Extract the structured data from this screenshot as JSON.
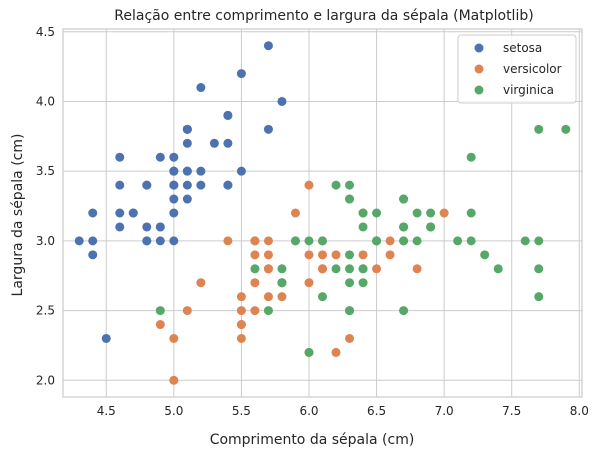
{
  "chart_data": {
    "type": "scatter",
    "title": "Relação entre comprimento e largura da sépala (Matplotlib)",
    "xlabel": "Comprimento da sépala (cm)",
    "ylabel": "Largura da sépala (cm)",
    "xlim": [
      4.18,
      8.02
    ],
    "ylim": [
      1.88,
      4.52
    ],
    "xticks": [
      4.5,
      5.0,
      5.5,
      6.0,
      6.5,
      7.0,
      7.5,
      8.0
    ],
    "xtick_labels": [
      "4.5",
      "5.0",
      "5.5",
      "6.0",
      "6.5",
      "7.0",
      "7.5",
      "8.0"
    ],
    "yticks": [
      2.0,
      2.5,
      3.0,
      3.5,
      4.0,
      4.5
    ],
    "ytick_labels": [
      "2.0",
      "2.5",
      "3.0",
      "3.5",
      "4.0",
      "4.5"
    ],
    "grid": true,
    "legend_position": "top-right",
    "series": [
      {
        "name": "setosa",
        "color": "#4c72b0",
        "points": [
          [
            5.1,
            3.5
          ],
          [
            4.9,
            3.0
          ],
          [
            4.7,
            3.2
          ],
          [
            4.6,
            3.1
          ],
          [
            5.0,
            3.6
          ],
          [
            5.4,
            3.9
          ],
          [
            4.6,
            3.4
          ],
          [
            5.0,
            3.4
          ],
          [
            4.4,
            2.9
          ],
          [
            4.9,
            3.1
          ],
          [
            5.4,
            3.7
          ],
          [
            4.8,
            3.4
          ],
          [
            4.8,
            3.0
          ],
          [
            4.3,
            3.0
          ],
          [
            5.8,
            4.0
          ],
          [
            5.7,
            4.4
          ],
          [
            5.4,
            3.9
          ],
          [
            5.1,
            3.5
          ],
          [
            5.7,
            3.8
          ],
          [
            5.1,
            3.8
          ],
          [
            5.4,
            3.4
          ],
          [
            5.1,
            3.7
          ],
          [
            4.6,
            3.6
          ],
          [
            5.1,
            3.3
          ],
          [
            4.8,
            3.4
          ],
          [
            5.0,
            3.0
          ],
          [
            5.0,
            3.4
          ],
          [
            5.2,
            3.5
          ],
          [
            5.2,
            3.4
          ],
          [
            4.7,
            3.2
          ],
          [
            4.8,
            3.1
          ],
          [
            5.4,
            3.4
          ],
          [
            5.2,
            4.1
          ],
          [
            5.5,
            4.2
          ],
          [
            4.9,
            3.1
          ],
          [
            5.0,
            3.2
          ],
          [
            5.5,
            3.5
          ],
          [
            4.9,
            3.6
          ],
          [
            4.4,
            3.0
          ],
          [
            5.1,
            3.4
          ],
          [
            5.0,
            3.5
          ],
          [
            4.5,
            2.3
          ],
          [
            4.4,
            3.2
          ],
          [
            5.0,
            3.5
          ],
          [
            5.1,
            3.8
          ],
          [
            4.8,
            3.0
          ],
          [
            5.1,
            3.8
          ],
          [
            4.6,
            3.2
          ],
          [
            5.3,
            3.7
          ],
          [
            5.0,
            3.3
          ]
        ]
      },
      {
        "name": "versicolor",
        "color": "#dd8452",
        "points": [
          [
            7.0,
            3.2
          ],
          [
            6.4,
            3.2
          ],
          [
            6.9,
            3.1
          ],
          [
            5.5,
            2.3
          ],
          [
            6.5,
            2.8
          ],
          [
            5.7,
            2.8
          ],
          [
            6.3,
            3.3
          ],
          [
            4.9,
            2.4
          ],
          [
            6.6,
            2.9
          ],
          [
            5.2,
            2.7
          ],
          [
            5.0,
            2.0
          ],
          [
            5.9,
            3.0
          ],
          [
            6.0,
            2.2
          ],
          [
            6.1,
            2.9
          ],
          [
            5.6,
            2.9
          ],
          [
            6.7,
            3.1
          ],
          [
            5.6,
            3.0
          ],
          [
            5.8,
            2.7
          ],
          [
            6.2,
            2.2
          ],
          [
            5.6,
            2.5
          ],
          [
            5.9,
            3.2
          ],
          [
            6.1,
            2.8
          ],
          [
            6.3,
            2.5
          ],
          [
            6.1,
            2.8
          ],
          [
            6.4,
            2.9
          ],
          [
            6.6,
            3.0
          ],
          [
            6.8,
            2.8
          ],
          [
            6.7,
            3.0
          ],
          [
            6.0,
            2.9
          ],
          [
            5.7,
            2.6
          ],
          [
            5.5,
            2.4
          ],
          [
            5.5,
            2.4
          ],
          [
            5.8,
            2.7
          ],
          [
            6.0,
            2.7
          ],
          [
            5.4,
            3.0
          ],
          [
            6.0,
            3.4
          ],
          [
            6.7,
            3.1
          ],
          [
            6.3,
            2.3
          ],
          [
            5.6,
            3.0
          ],
          [
            5.5,
            2.5
          ],
          [
            5.5,
            2.6
          ],
          [
            6.1,
            3.0
          ],
          [
            5.8,
            2.6
          ],
          [
            5.0,
            2.3
          ],
          [
            5.6,
            2.7
          ],
          [
            5.7,
            3.0
          ],
          [
            5.7,
            2.9
          ],
          [
            6.2,
            2.9
          ],
          [
            5.1,
            2.5
          ],
          [
            5.7,
            2.8
          ]
        ]
      },
      {
        "name": "virginica",
        "color": "#55a868",
        "points": [
          [
            6.3,
            3.3
          ],
          [
            5.8,
            2.7
          ],
          [
            7.1,
            3.0
          ],
          [
            6.3,
            2.9
          ],
          [
            6.5,
            3.0
          ],
          [
            7.6,
            3.0
          ],
          [
            4.9,
            2.5
          ],
          [
            7.3,
            2.9
          ],
          [
            6.7,
            2.5
          ],
          [
            7.2,
            3.6
          ],
          [
            6.5,
            3.2
          ],
          [
            6.4,
            2.7
          ],
          [
            6.8,
            3.0
          ],
          [
            5.7,
            2.5
          ],
          [
            5.8,
            2.8
          ],
          [
            6.4,
            3.2
          ],
          [
            6.5,
            3.0
          ],
          [
            7.7,
            3.8
          ],
          [
            7.7,
            2.6
          ],
          [
            6.0,
            2.2
          ],
          [
            6.9,
            3.2
          ],
          [
            5.6,
            2.8
          ],
          [
            7.7,
            2.8
          ],
          [
            6.3,
            2.7
          ],
          [
            6.7,
            3.3
          ],
          [
            7.2,
            3.2
          ],
          [
            6.2,
            2.8
          ],
          [
            6.1,
            3.0
          ],
          [
            6.4,
            2.8
          ],
          [
            7.2,
            3.0
          ],
          [
            7.4,
            2.8
          ],
          [
            7.9,
            3.8
          ],
          [
            6.4,
            2.8
          ],
          [
            6.3,
            2.8
          ],
          [
            6.1,
            2.6
          ],
          [
            7.7,
            3.0
          ],
          [
            6.3,
            3.4
          ],
          [
            6.4,
            3.1
          ],
          [
            6.0,
            3.0
          ],
          [
            6.9,
            3.1
          ],
          [
            6.7,
            3.1
          ],
          [
            6.9,
            3.1
          ],
          [
            5.8,
            2.7
          ],
          [
            6.8,
            3.2
          ],
          [
            6.7,
            3.3
          ],
          [
            6.7,
            3.0
          ],
          [
            6.3,
            2.5
          ],
          [
            6.5,
            3.0
          ],
          [
            6.2,
            3.4
          ],
          [
            5.9,
            3.0
          ]
        ]
      }
    ]
  }
}
